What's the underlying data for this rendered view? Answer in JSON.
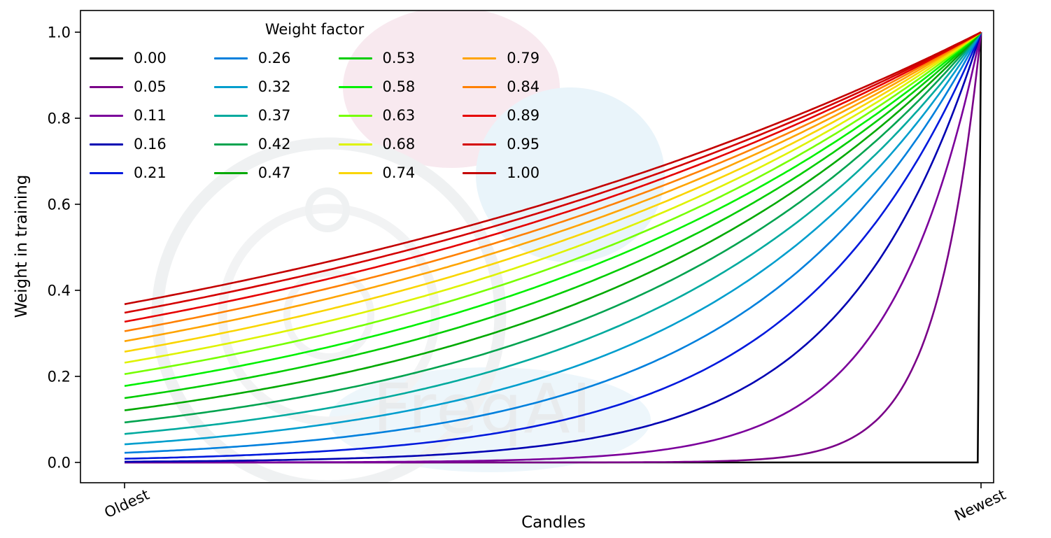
{
  "figure": {
    "background": "#ffffff",
    "watermark_text": "FreqAI"
  },
  "chart_data": {
    "type": "line",
    "title": "",
    "xlabel": "Candles",
    "ylabel": "Weight in training",
    "x_tick_labels": [
      "Oldest",
      "Newest"
    ],
    "y_ticks": [
      0.0,
      0.2,
      0.4,
      0.6,
      0.8,
      1.0
    ],
    "ylim": [
      0,
      1
    ],
    "x_range_note": "x runs from 0 at Oldest candle to 1 at Newest candle",
    "grid": false,
    "legend_title": "Weight factor",
    "legend_position": "upper-left",
    "legend_columns": 4,
    "curve_formula": "weight(x) = exp(-(1 - x) / factor); for factor = 0 the weight is 0 for all x < 1 and 1 at x = 1; every curve converges to weight 1.0 at Newest",
    "series": [
      {
        "label": "0.00",
        "factor": 0.0,
        "color": "#000000",
        "value_at_oldest": 0.0,
        "value_at_newest": 1.0
      },
      {
        "label": "0.05",
        "factor": 0.0526,
        "color": "#7A0088",
        "value_at_oldest": 0.0,
        "value_at_newest": 1.0
      },
      {
        "label": "0.11",
        "factor": 0.1053,
        "color": "#7B009B",
        "value_at_oldest": 0.0001,
        "value_at_newest": 1.0
      },
      {
        "label": "0.16",
        "factor": 0.1579,
        "color": "#0000B2",
        "value_at_oldest": 0.0018,
        "value_at_newest": 1.0
      },
      {
        "label": "0.21",
        "factor": 0.2105,
        "color": "#0019DD",
        "value_at_oldest": 0.0087,
        "value_at_newest": 1.0
      },
      {
        "label": "0.26",
        "factor": 0.2632,
        "color": "#0080DD",
        "value_at_oldest": 0.0224,
        "value_at_newest": 1.0
      },
      {
        "label": "0.32",
        "factor": 0.3158,
        "color": "#009ECD",
        "value_at_oldest": 0.0421,
        "value_at_newest": 1.0
      },
      {
        "label": "0.37",
        "factor": 0.3684,
        "color": "#00AA9E",
        "value_at_oldest": 0.0663,
        "value_at_newest": 1.0
      },
      {
        "label": "0.42",
        "factor": 0.4211,
        "color": "#00A34F",
        "value_at_oldest": 0.093,
        "value_at_newest": 1.0
      },
      {
        "label": "0.47",
        "factor": 0.4737,
        "color": "#00A900",
        "value_at_oldest": 0.1211,
        "value_at_newest": 1.0
      },
      {
        "label": "0.53",
        "factor": 0.5263,
        "color": "#00CD00",
        "value_at_oldest": 0.1496,
        "value_at_newest": 1.0
      },
      {
        "label": "0.58",
        "factor": 0.5789,
        "color": "#00F100",
        "value_at_oldest": 0.1778,
        "value_at_newest": 1.0
      },
      {
        "label": "0.63",
        "factor": 0.6316,
        "color": "#76FF00",
        "value_at_oldest": 0.2053,
        "value_at_newest": 1.0
      },
      {
        "label": "0.68",
        "factor": 0.6842,
        "color": "#DEF300",
        "value_at_oldest": 0.2319,
        "value_at_newest": 1.0
      },
      {
        "label": "0.74",
        "factor": 0.7368,
        "color": "#FAD500",
        "value_at_oldest": 0.2574,
        "value_at_newest": 1.0
      },
      {
        "label": "0.79",
        "factor": 0.7895,
        "color": "#FFA400",
        "value_at_oldest": 0.2817,
        "value_at_newest": 1.0
      },
      {
        "label": "0.84",
        "factor": 0.8421,
        "color": "#FF8000",
        "value_at_oldest": 0.305,
        "value_at_newest": 1.0
      },
      {
        "label": "0.89",
        "factor": 0.8947,
        "color": "#E60000",
        "value_at_oldest": 0.327,
        "value_at_newest": 1.0
      },
      {
        "label": "0.95",
        "factor": 0.9474,
        "color": "#D40000",
        "value_at_oldest": 0.348,
        "value_at_newest": 1.0
      },
      {
        "label": "1.00",
        "factor": 1.0,
        "color": "#C40000",
        "value_at_oldest": 0.3679,
        "value_at_newest": 1.0
      }
    ]
  }
}
